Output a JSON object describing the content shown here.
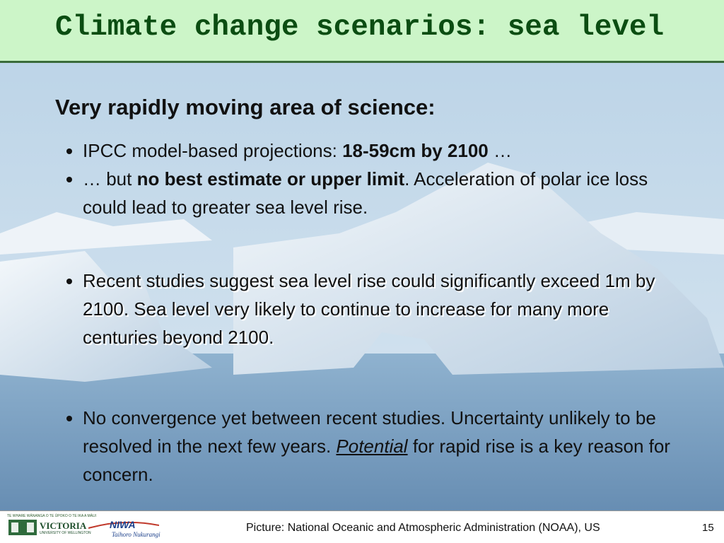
{
  "header": {
    "title": "Climate change scenarios: sea level"
  },
  "content": {
    "heading": "Very rapidly moving area of science:",
    "bullets": [
      {
        "runs": [
          {
            "text": "IPCC model-based projections: "
          },
          {
            "text": "18-59cm by 2100",
            "bold": true
          },
          {
            "text": " …"
          }
        ]
      },
      {
        "runs": [
          {
            "text": "… but "
          },
          {
            "text": "no best estimate or upper limit",
            "bold": true
          },
          {
            "text": ". Acceleration of polar ice loss could lead to greater sea level rise."
          }
        ]
      },
      {
        "shadow": true,
        "runs": [
          {
            "text": "Recent studies suggest sea level rise could significantly exceed 1m by 2100. Sea level very likely to continue to increase for many more centuries beyond 2100."
          }
        ]
      },
      {
        "runs": [
          {
            "text": "No convergence yet between recent studies. Uncertainty unlikely to be resolved in the next few years. "
          },
          {
            "text": "Potential",
            "italic": true,
            "underline": true
          },
          {
            "text": " for rapid rise is a key reason for concern."
          }
        ]
      }
    ]
  },
  "footer": {
    "motto": "TE WHARE WĀNANGA O TE ŪPOKO O TE IKA A MĀUI",
    "university": "VICTORIA",
    "university_sub": "UNIVERSITY OF WELLINGTON",
    "institute": "NIWA",
    "institute_sub": "Taihoro Nukurangi",
    "caption": "Picture: National Oceanic and Atmospheric Administration (NOAA), US",
    "page": "15"
  }
}
